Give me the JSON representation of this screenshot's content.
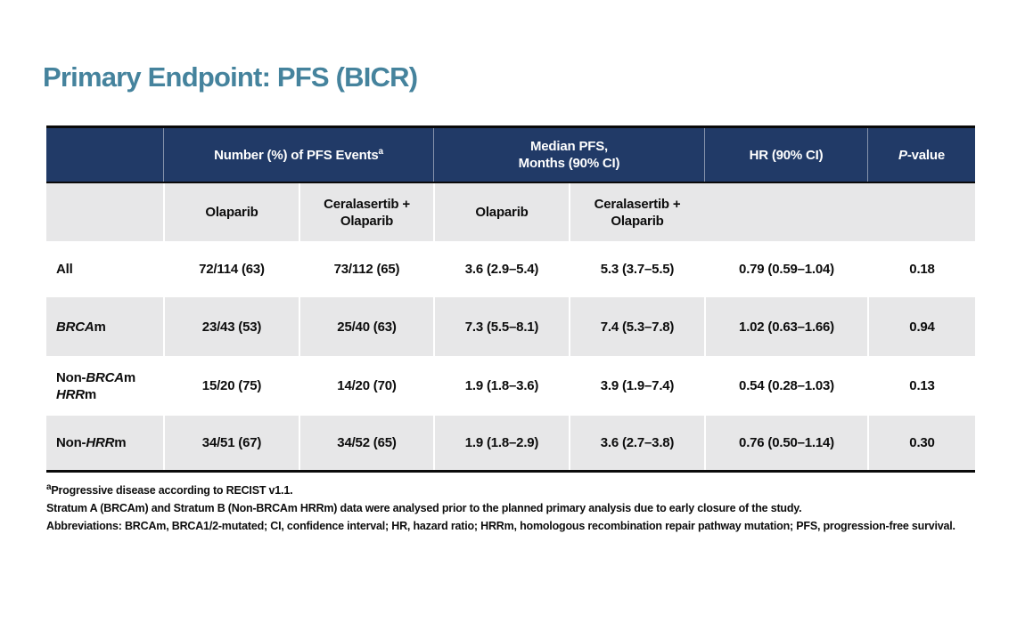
{
  "slide": {
    "title": "Primary Endpoint: PFS (BICR)"
  },
  "colors": {
    "title_teal": "#45839D",
    "header_navy": "#213A67",
    "band_gray": "#E7E7E8",
    "border_black": "#0A0A0A",
    "header_text": "#FFFFFF"
  },
  "table": {
    "headers": {
      "events": "Number (%) of PFS Events",
      "events_sup": "a",
      "median_line1": "Median PFS,",
      "median_line2": "Months (90% CI)",
      "hr": "HR (90% CI)",
      "p_italic": "P",
      "p_rest": "-value"
    },
    "subheaders": {
      "olaparib_events": "Olaparib",
      "combo_events_line1": "Ceralasertib +",
      "combo_events_line2": "Olaparib",
      "olaparib_median": "Olaparib",
      "combo_median_line1": "Ceralasertib +",
      "combo_median_line2": "Olaparib"
    },
    "rows": [
      {
        "label": "All",
        "events_olaparib": "72/114 (63)",
        "events_combo": "73/112 (65)",
        "median_olaparib": "3.6 (2.9–5.4)",
        "median_combo": "5.3 (3.7–5.5)",
        "hr": "0.79 (0.59–1.04)",
        "p": "0.18"
      },
      {
        "label_italic": "BRCA",
        "label_suffix": "m",
        "events_olaparib": "23/43 (53)",
        "events_combo": "25/40 (63)",
        "median_olaparib": "7.3 (5.5–8.1)",
        "median_combo": "7.4 (5.3–7.8)",
        "hr": "1.02 (0.63–1.66)",
        "p": "0.94"
      },
      {
        "label_prefix": "Non-",
        "label_italic": "BRCA",
        "label_suffix": "m",
        "label2_italic": "HRR",
        "label2_suffix": "m",
        "events_olaparib": "15/20 (75)",
        "events_combo": "14/20 (70)",
        "median_olaparib": "1.9 (1.8–3.6)",
        "median_combo": "3.9 (1.9–7.4)",
        "hr": "0.54 (0.28–1.03)",
        "p": "0.13"
      },
      {
        "label_prefix": "Non-",
        "label_italic": "HRR",
        "label_suffix": "m",
        "events_olaparib": "34/51 (67)",
        "events_combo": "34/52 (65)",
        "median_olaparib": "1.9 (1.8–2.9)",
        "median_combo": "3.6 (2.7–3.8)",
        "hr": "0.76 (0.50–1.14)",
        "p": "0.30"
      }
    ]
  },
  "footnotes": {
    "fn1_sup": "a",
    "fn1": "Progressive disease according to RECIST v1.1.",
    "fn2": "Stratum A (BRCAm) and Stratum B (Non-BRCAm HRRm) data were analysed prior to the planned primary analysis due to early closure of the study.",
    "fn3": "Abbreviations: BRCAm, BRCA1/2-mutated; CI, confidence interval; HR, hazard ratio; HRRm, homologous recombination repair pathway mutation; PFS, progression-free survival."
  }
}
